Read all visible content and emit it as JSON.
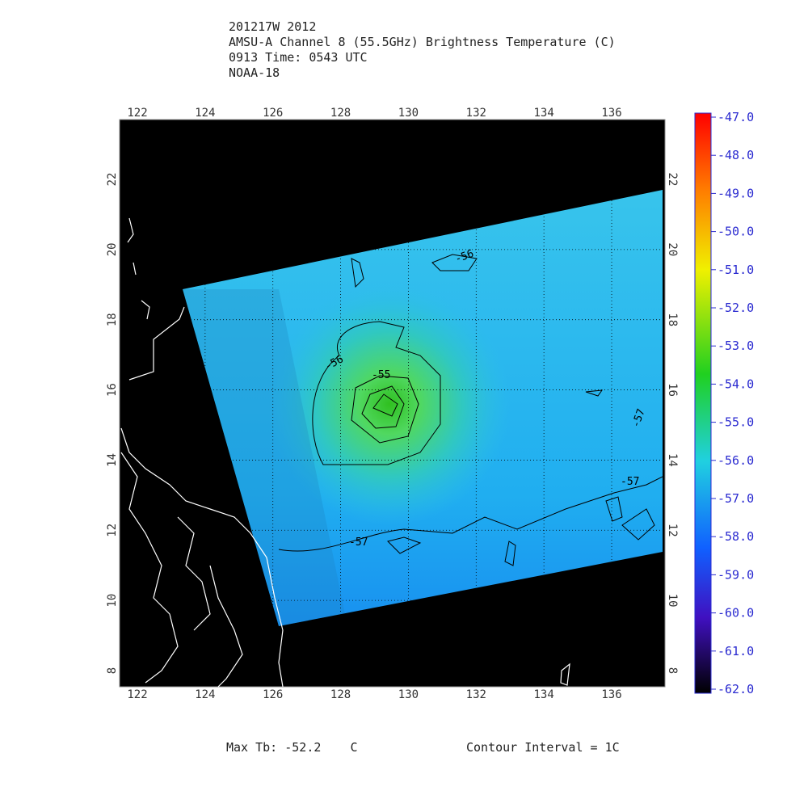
{
  "header": {
    "lines": [
      "201217W 2012",
      "AMSU-A Channel 8 (55.5GHz) Brightness Temperature (C)",
      "0913 Time: 0543 UTC",
      "NOAA-18"
    ]
  },
  "map": {
    "lon_ticks": [
      122,
      124,
      126,
      128,
      130,
      132,
      134,
      136
    ],
    "lat_ticks": [
      8,
      10,
      12,
      14,
      16,
      18,
      20,
      22
    ],
    "contour_labels": [
      "-55",
      "-56",
      "-56",
      "-57",
      "-57",
      "-57"
    ]
  },
  "colorbar": {
    "labels": [
      {
        "value": -47,
        "label": "-47.0"
      },
      {
        "value": -48,
        "label": "-48.0"
      },
      {
        "value": -49,
        "label": "-49.0"
      },
      {
        "value": -50,
        "label": "-50.0"
      },
      {
        "value": -51,
        "label": "-51.0"
      },
      {
        "value": -52,
        "label": "-52.0"
      },
      {
        "value": -53,
        "label": "-53.0"
      },
      {
        "value": -54,
        "label": "-54.0"
      },
      {
        "value": -55,
        "label": "-55.0"
      },
      {
        "value": -56,
        "label": "-56.0"
      },
      {
        "value": -57,
        "label": "-57.0"
      },
      {
        "value": -58,
        "label": "-58.0"
      },
      {
        "value": -59,
        "label": "-59.0"
      },
      {
        "value": -60,
        "label": "-60.0"
      },
      {
        "value": -61,
        "label": "-61.0"
      },
      {
        "value": -62,
        "label": "-62.0"
      }
    ]
  },
  "footer": {
    "max_tb": "Max Tb: -52.2    C",
    "interval": "Contour Interval = 1C"
  }
}
